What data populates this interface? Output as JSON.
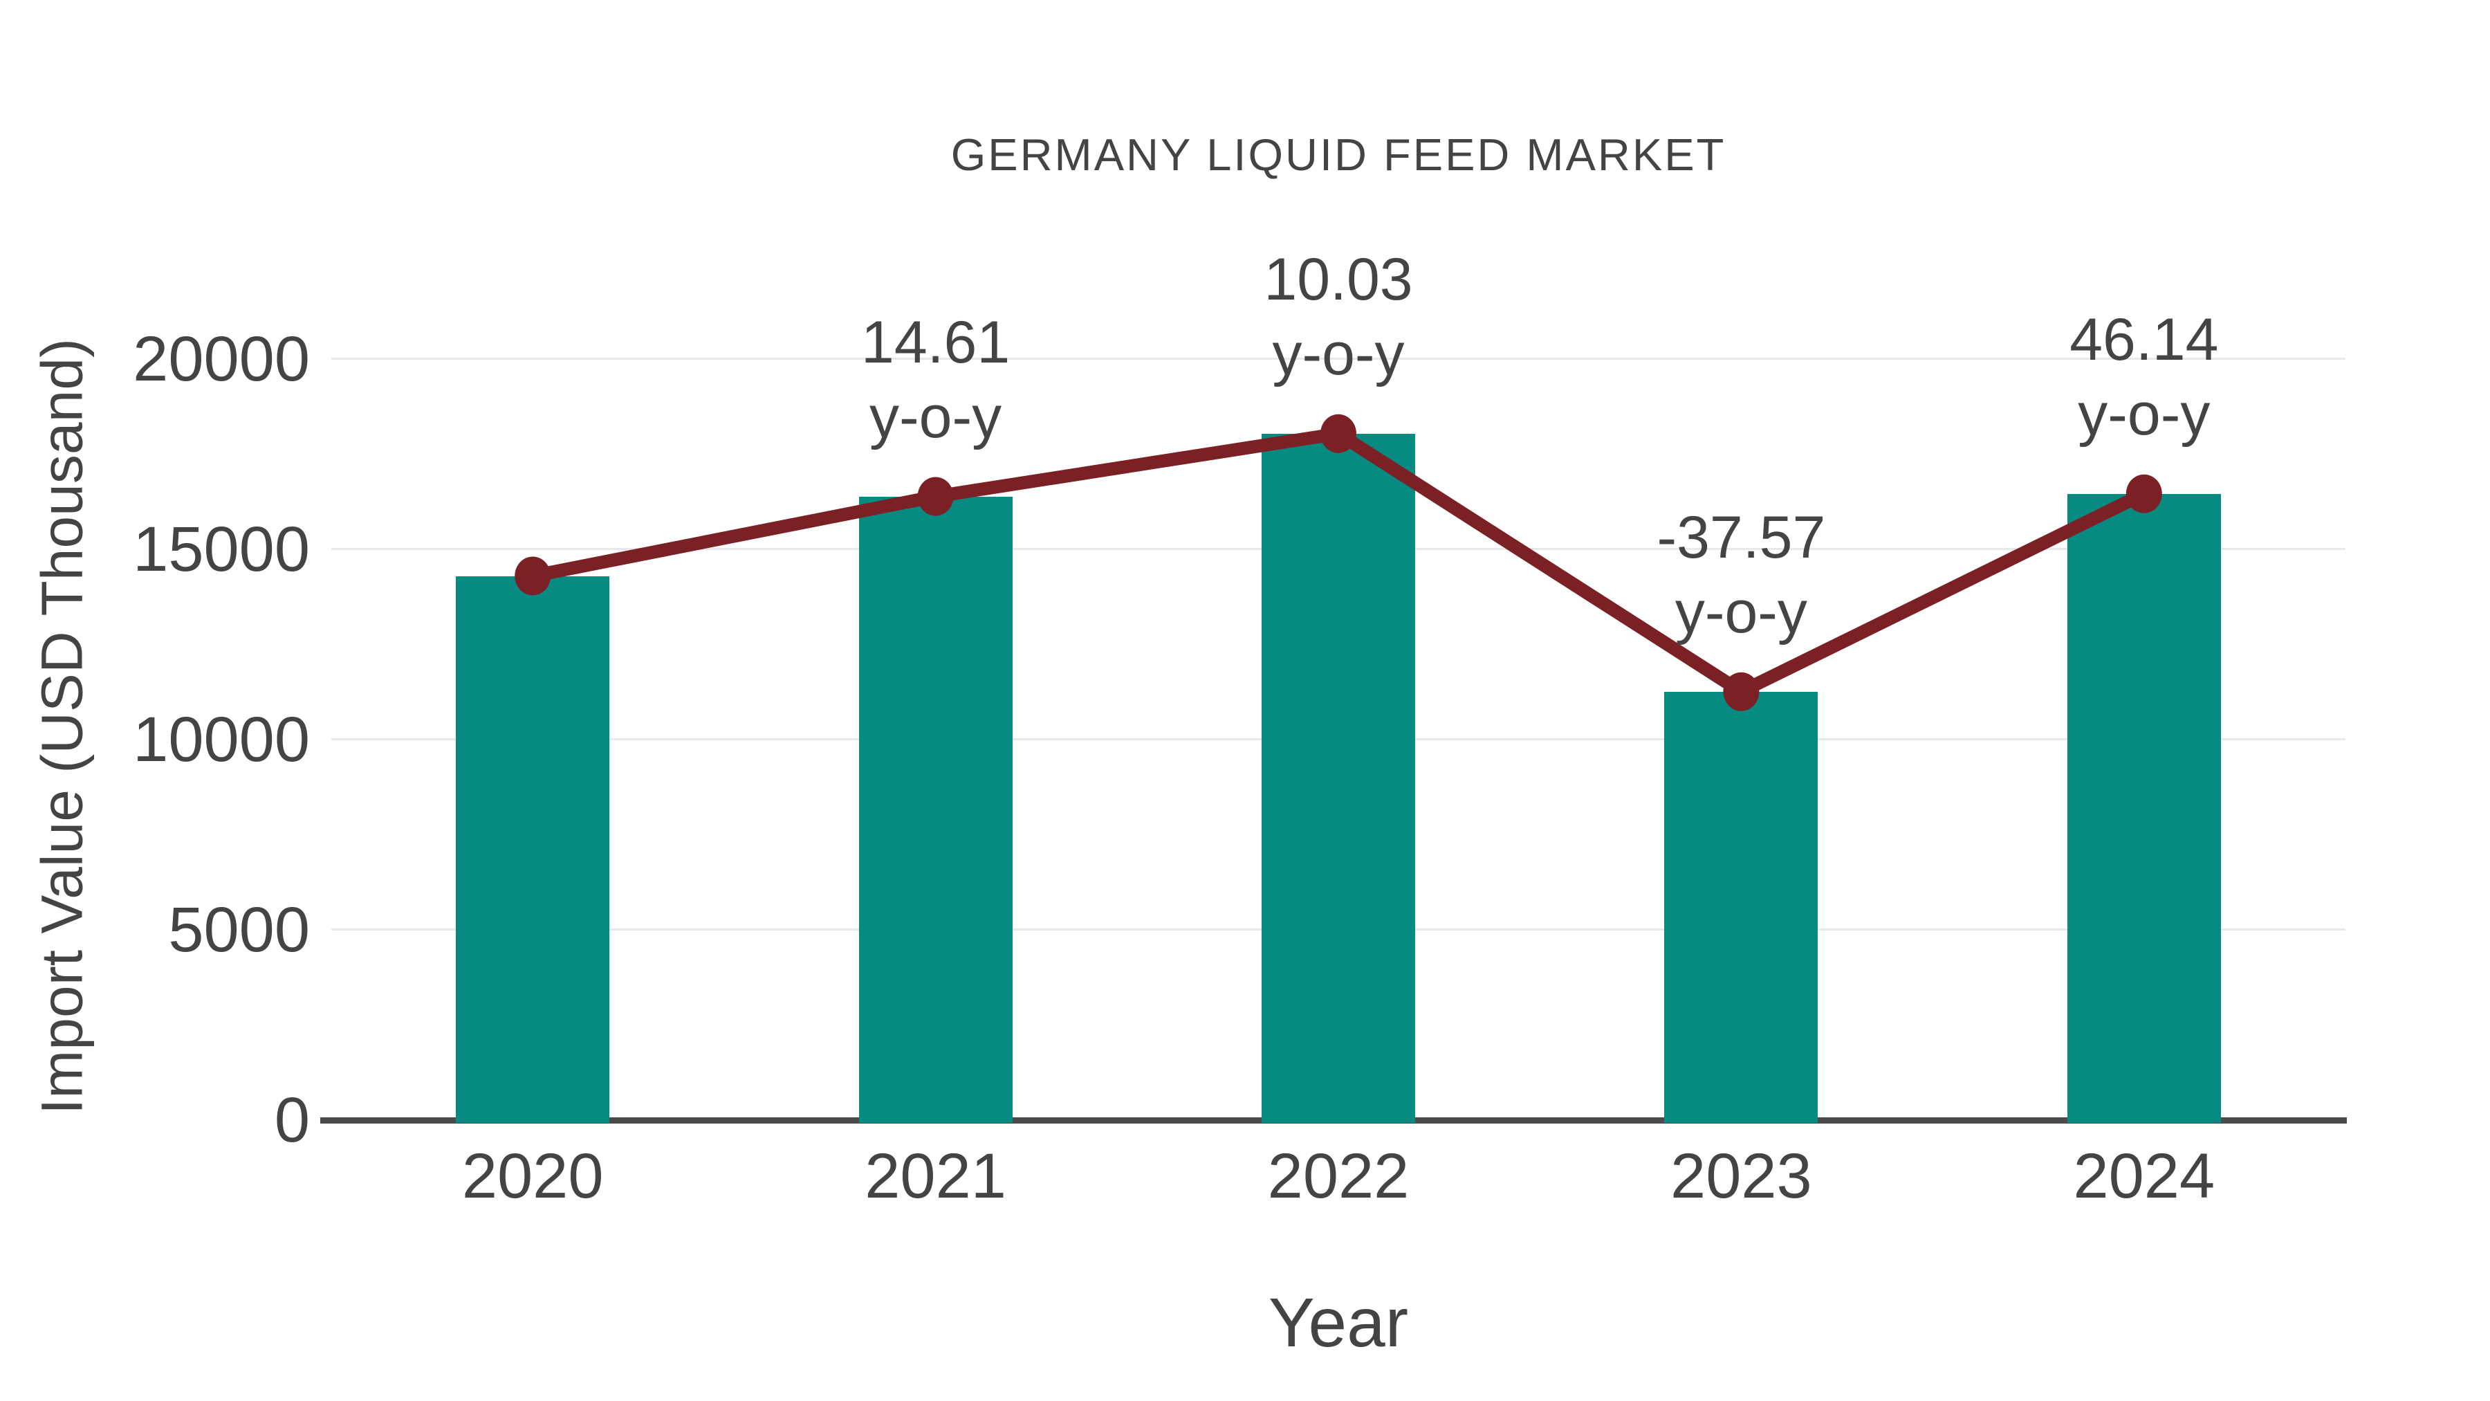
{
  "chart_data": {
    "type": "bar",
    "title": "GERMANY LIQUID FEED MARKET",
    "xlabel": "Year",
    "ylabel": "Import Value (USD Thousand)",
    "categories": [
      "2020",
      "2021",
      "2022",
      "2023",
      "2024"
    ],
    "series": [
      {
        "name": "Import Value",
        "type": "bar",
        "values": [
          14300,
          16390,
          18040,
          11260,
          16460
        ]
      },
      {
        "name": "Trend",
        "type": "line",
        "values": [
          14300,
          16390,
          18040,
          11260,
          16460
        ]
      }
    ],
    "annotations": [
      {
        "category": "2021",
        "value": "14.61",
        "label": "y-o-y"
      },
      {
        "category": "2022",
        "value": "10.03",
        "label": "y-o-y"
      },
      {
        "category": "2023",
        "value": "-37.57",
        "label": "y-o-y"
      },
      {
        "category": "2024",
        "value": "46.14",
        "label": "y-o-y"
      }
    ],
    "yticks": [
      0,
      5000,
      10000,
      15000,
      20000
    ],
    "ylim": [
      0,
      21818
    ],
    "grid": true,
    "legend": "none",
    "colors": {
      "bar": "#078a82",
      "line": "#7b2125",
      "marker": "#7b2125",
      "grid": "#e8e9eb",
      "axis": "#4a4a4a",
      "text": "#444444"
    }
  }
}
